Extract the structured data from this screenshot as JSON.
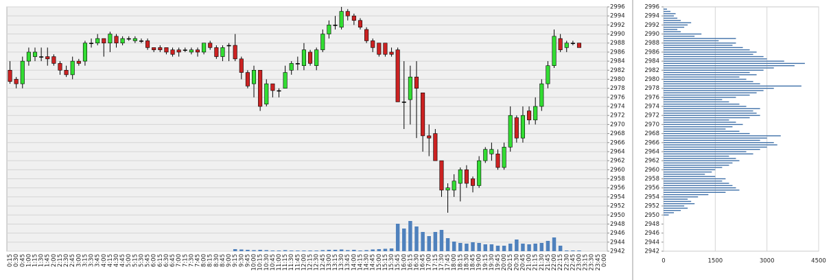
{
  "chart_data": [
    {
      "type": "candlestick",
      "categories": [
        "0:15",
        "0:30",
        "0:45",
        "1:00",
        "1:15",
        "1:30",
        "1:45",
        "2:00",
        "2:15",
        "2:30",
        "2:45",
        "3:00",
        "3:15",
        "3:30",
        "3:45",
        "4:00",
        "4:15",
        "4:30",
        "4:45",
        "5:00",
        "5:15",
        "5:30",
        "5:45",
        "6:00",
        "6:15",
        "6:30",
        "6:45",
        "7:00",
        "7:15",
        "7:30",
        "7:45",
        "8:00",
        "8:15",
        "8:30",
        "8:45",
        "9:00",
        "9:15",
        "9:30",
        "9:45",
        "10:00",
        "10:15",
        "10:30",
        "10:45",
        "11:00",
        "11:15",
        "11:30",
        "11:45",
        "12:00",
        "12:15",
        "12:30",
        "12:45",
        "13:00",
        "13:15",
        "13:30",
        "13:45",
        "14:00",
        "14:15",
        "14:30",
        "14:45",
        "15:00",
        "15:15",
        "15:30",
        "15:45",
        "16:00",
        "16:15",
        "16:30",
        "16:45",
        "17:00",
        "17:15",
        "17:30",
        "17:45",
        "18:00",
        "18:15",
        "18:30",
        "18:45",
        "19:00",
        "19:15",
        "19:30",
        "19:45",
        "20:00",
        "20:15",
        "20:30",
        "20:45",
        "21:00",
        "21:15",
        "21:30",
        "21:45",
        "22:00",
        "22:15",
        "22:30",
        "22:45",
        "23:00",
        "23:15",
        "23:30",
        "23:45",
        "0:00"
      ],
      "open": [
        2982,
        2980,
        2979,
        2984,
        2985,
        2985,
        2985,
        2985,
        2983.5,
        2982,
        2981,
        2984,
        2984,
        2988,
        2988,
        2989,
        2988,
        2989.5,
        2988,
        2989,
        2988.5,
        2988.5,
        2988.5,
        2987,
        2987,
        2987,
        2986.5,
        2986.5,
        2986.5,
        2986,
        2986.5,
        2986,
        2988,
        2987,
        2985,
        2987.5,
        2987.5,
        2984.5,
        2981.5,
        2979,
        2982,
        2974.5,
        2979,
        2977.5,
        2978,
        2982,
        2983.5,
        2983,
        2986,
        2983,
        2986.5,
        2990,
        2992,
        2991.5,
        2995,
        2994,
        2993,
        2991,
        2988.5,
        2988,
        2988,
        2986,
        2986.5,
        2975,
        2975.5,
        2980.5,
        2977,
        2967.5,
        2968,
        2962,
        2955.5,
        2955.5,
        2957,
        2960,
        2958,
        2956.5,
        2962,
        2963.5,
        2963.5,
        2960.5,
        2965,
        2971.5,
        2967,
        2973,
        2971,
        2974,
        2979,
        2983,
        2989,
        2987,
        2988,
        2988,
        null,
        null,
        null,
        null
      ],
      "high": [
        2984,
        2980.5,
        2985,
        2987,
        2987,
        2987,
        2987,
        2985.5,
        2984,
        2983,
        2985,
        2984.5,
        2988.5,
        2989,
        2990,
        2989,
        2990.5,
        2990,
        2989.5,
        2989.5,
        2989.5,
        2989,
        2989,
        2987,
        2987.5,
        2987,
        2987,
        2987,
        2987,
        2987,
        2987,
        2988,
        2988.5,
        2987.5,
        2987.5,
        2988,
        2990,
        2985,
        2982,
        2983,
        2982,
        2980,
        2979,
        2978,
        2983,
        2984,
        2985,
        2988,
        2986.5,
        2987,
        2991,
        2993,
        2994,
        2996,
        2995.5,
        2994.5,
        2993.5,
        2991.5,
        2989,
        2988,
        2988,
        2987,
        2987,
        2984,
        2983,
        2984,
        2977,
        2970,
        2969,
        2962,
        2957,
        2959,
        2960.5,
        2961,
        2958.5,
        2963,
        2965,
        2966,
        2964.5,
        2966,
        2974,
        2972,
        2974,
        2974,
        2976,
        2980,
        2984,
        2991,
        2990,
        2988.5,
        2988.5,
        2988,
        null,
        null,
        null,
        null
      ],
      "low": [
        2979,
        2978,
        2978,
        2983,
        2984,
        2984,
        2983,
        2983,
        2981,
        2980.5,
        2980,
        2983,
        2983,
        2987,
        2987.5,
        2985,
        2986,
        2987,
        2987.5,
        2988.5,
        2988,
        2988,
        2986.5,
        2986,
        2986,
        2985.5,
        2985,
        2985,
        2986,
        2985.5,
        2985,
        2985.5,
        2986.5,
        2984.5,
        2984,
        2984,
        2984,
        2980,
        2978,
        2976,
        2973,
        2974,
        2976,
        2976,
        2978,
        2981,
        2982,
        2982,
        2983,
        2982,
        2986,
        2989,
        2991,
        2991,
        2993,
        2992,
        2991,
        2988,
        2986,
        2985,
        2985,
        2985,
        2975,
        2969,
        2970,
        2967,
        2964,
        2963,
        2962,
        2954,
        2950.5,
        2954,
        2953,
        2956,
        2955,
        2956,
        2961.5,
        2962,
        2960,
        2960,
        2964,
        2966,
        2966,
        2970,
        2970,
        2973,
        2978,
        2982.5,
        2986,
        2986,
        2987.5,
        2987,
        null,
        null,
        null,
        null
      ],
      "close": [
        2979.5,
        2979,
        2984,
        2986,
        2986,
        2985,
        2984.5,
        2983.5,
        2982,
        2981,
        2984,
        2983.5,
        2988,
        2988,
        2989,
        2988,
        2990,
        2988,
        2989,
        2989,
        2989,
        2988.5,
        2987,
        2986.5,
        2986.5,
        2986,
        2985.5,
        2986,
        2986.5,
        2986.5,
        2986,
        2988,
        2987,
        2985,
        2987,
        2987.5,
        2984.5,
        2981.5,
        2978.5,
        2982,
        2974,
        2979,
        2977.5,
        2977.5,
        2981.5,
        2983.5,
        2983.5,
        2986.5,
        2983.5,
        2986.5,
        2990,
        2992,
        2992,
        2995,
        2994,
        2993,
        2991.5,
        2988.5,
        2987,
        2985.5,
        2985.5,
        2985.5,
        2975,
        2975,
        2980.5,
        2978,
        2967.5,
        2967,
        2962,
        2955.5,
        2956,
        2957.5,
        2960,
        2957,
        2956.5,
        2962,
        2964.5,
        2964.5,
        2960.5,
        2965,
        2972,
        2967,
        2972,
        2971,
        2974,
        2979,
        2983,
        2989.5,
        2986.5,
        2988,
        2988,
        2987,
        null,
        null,
        null,
        null
      ],
      "volume": [
        0,
        0,
        0,
        0,
        0,
        0,
        0,
        0,
        0,
        0,
        0,
        0,
        0,
        0,
        0,
        0,
        0,
        0,
        0,
        0,
        0,
        0,
        0,
        0,
        0,
        0,
        0,
        0,
        0,
        0,
        0,
        0,
        0,
        0,
        0,
        0,
        300,
        250,
        200,
        150,
        200,
        150,
        100,
        100,
        150,
        100,
        100,
        100,
        100,
        100,
        150,
        200,
        200,
        250,
        150,
        200,
        100,
        150,
        250,
        300,
        350,
        400,
        4000,
        3300,
        4400,
        3600,
        2800,
        2200,
        2800,
        3100,
        1900,
        1400,
        1200,
        1100,
        1300,
        1200,
        1000,
        1000,
        800,
        800,
        1100,
        1700,
        1100,
        1000,
        1100,
        1200,
        1500,
        2000,
        800,
        100,
        100,
        100,
        null,
        null,
        null,
        null
      ],
      "up_color": "#33dd33",
      "down_color": "#cc2222",
      "volume_color": "#4f81bd",
      "ylim": [
        2942,
        2996
      ],
      "yticks": [
        2942,
        2944,
        2946,
        2948,
        2950,
        2952,
        2954,
        2956,
        2958,
        2960,
        2962,
        2964,
        2966,
        2968,
        2970,
        2972,
        2974,
        2976,
        2978,
        2980,
        2982,
        2984,
        2986,
        2988,
        2990,
        2992,
        2994,
        2996
      ],
      "grid": true
    },
    {
      "type": "hbar",
      "y": [
        2950,
        2950.5,
        2951,
        2951.5,
        2952,
        2952.5,
        2953,
        2953.5,
        2954,
        2954.5,
        2955,
        2955.5,
        2956,
        2956.5,
        2957,
        2957.5,
        2958,
        2958.5,
        2959,
        2959.5,
        2960,
        2960.5,
        2961,
        2961.5,
        2962,
        2962.5,
        2963,
        2963.5,
        2964,
        2964.5,
        2965,
        2965.5,
        2966,
        2966.5,
        2967,
        2967.5,
        2968,
        2968.5,
        2969,
        2969.5,
        2970,
        2970.5,
        2971,
        2971.5,
        2972,
        2972.5,
        2973,
        2973.5,
        2974,
        2974.5,
        2975,
        2975.5,
        2976,
        2976.5,
        2977,
        2977.5,
        2978,
        2978.5,
        2979,
        2979.5,
        2980,
        2980.5,
        2981,
        2981.5,
        2982,
        2982.5,
        2983,
        2983.5,
        2984,
        2984.5,
        2985,
        2985.5,
        2986,
        2986.5,
        2987,
        2987.5,
        2988,
        2988.5,
        2989,
        2989.5,
        2990,
        2990.5,
        2991,
        2991.5,
        2992,
        2992.5,
        2993,
        2993.5,
        2994,
        2994.5,
        2995,
        2995.5
      ],
      "values": [
        150,
        300,
        500,
        700,
        600,
        900,
        800,
        700,
        1000,
        1300,
        1800,
        2200,
        2100,
        2000,
        1900,
        1700,
        1800,
        1500,
        1200,
        1400,
        1500,
        1700,
        1900,
        2000,
        2200,
        2100,
        1900,
        2600,
        2400,
        2800,
        3000,
        3300,
        3200,
        2800,
        3000,
        3400,
        2500,
        2200,
        1800,
        2000,
        2300,
        2100,
        1900,
        2500,
        2800,
        2700,
        2600,
        2800,
        2400,
        2200,
        1900,
        1700,
        2100,
        2500,
        2700,
        2900,
        3200,
        4000,
        2800,
        2600,
        2400,
        2200,
        2700,
        2500,
        2900,
        3200,
        3800,
        4100,
        3500,
        3000,
        2900,
        2600,
        2700,
        2500,
        2300,
        2000,
        2100,
        1600,
        2100,
        900,
        1100,
        500,
        400,
        600,
        700,
        800,
        500,
        400,
        300,
        350,
        200,
        100
      ],
      "color": "#3d6fa8",
      "xlim": [
        0,
        4500
      ],
      "xticks": [
        0,
        1500,
        3000,
        4500
      ],
      "ylim": [
        2942,
        2996
      ],
      "yticks": [
        2942,
        2944,
        2946,
        2948,
        2950,
        2952,
        2954,
        2956,
        2958,
        2960,
        2962,
        2964,
        2966,
        2968,
        2970,
        2972,
        2974,
        2976,
        2978,
        2980,
        2982,
        2984,
        2986,
        2988,
        2990,
        2992,
        2994,
        2996
      ],
      "grid": true
    }
  ]
}
